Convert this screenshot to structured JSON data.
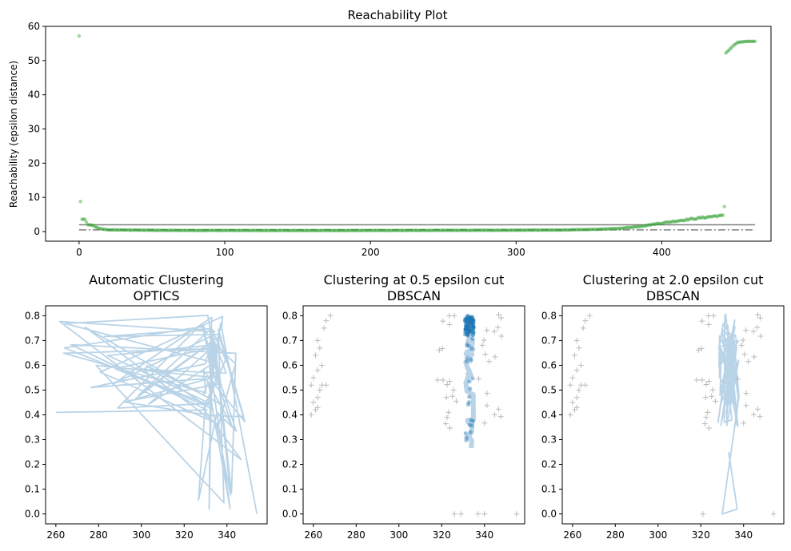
{
  "chart_data": [
    {
      "id": "reachability",
      "type": "scatter",
      "title": "Reachability Plot",
      "subtitle": "",
      "xlabel": "",
      "ylabel": "Reachability (epsilon distance)",
      "xlim": [
        -23,
        475
      ],
      "ylim": [
        -2.8,
        60
      ],
      "xticks": [
        0,
        100,
        200,
        300,
        400
      ],
      "yticks": [
        0,
        10,
        20,
        30,
        40,
        50,
        60
      ],
      "grid": false,
      "legend": "none",
      "point_color": "#2ca02c",
      "series": [
        {
          "role": "reachability-points",
          "anchors": [
            [
              0,
              57.2
            ],
            [
              1,
              8.8
            ],
            [
              2,
              3.6
            ],
            [
              4,
              3.6
            ],
            [
              6,
              2.0
            ],
            [
              9,
              1.9
            ],
            [
              12,
              1.2
            ],
            [
              15,
              0.8
            ],
            [
              20,
              0.5
            ],
            [
              60,
              0.35
            ],
            [
              150,
              0.3
            ],
            [
              250,
              0.35
            ],
            [
              300,
              0.4
            ],
            [
              330,
              0.45
            ],
            [
              350,
              0.6
            ],
            [
              370,
              0.9
            ],
            [
              385,
              1.5
            ],
            [
              395,
              2.2
            ],
            [
              405,
              2.8
            ],
            [
              415,
              3.4
            ],
            [
              425,
              3.9
            ],
            [
              432,
              4.3
            ],
            [
              438,
              4.6
            ],
            [
              442,
              4.8
            ],
            [
              443,
              7.3
            ],
            [
              444,
              52.2
            ],
            [
              446,
              53.0
            ],
            [
              449,
              54.3
            ],
            [
              452,
              55.3
            ],
            [
              458,
              55.6
            ],
            [
              464,
              55.6
            ]
          ],
          "count": 465
        }
      ],
      "hlines": [
        {
          "y": 2.0,
          "style": "solid",
          "color": "#000000",
          "alpha": 0.5
        },
        {
          "y": 0.5,
          "style": "dashdot",
          "color": "#000000",
          "alpha": 0.5
        }
      ]
    },
    {
      "id": "optics",
      "type": "line",
      "title": "Automatic Clustering",
      "subtitle": "OPTICS",
      "xlim": [
        255.2,
        358.8
      ],
      "ylim": [
        -0.04,
        0.84
      ],
      "xticks": [
        260,
        280,
        300,
        320,
        340
      ],
      "yticks": [
        0.0,
        0.1,
        0.2,
        0.3,
        0.4,
        0.5,
        0.6,
        0.7,
        0.8
      ],
      "line_color": "#b9d3e7"
    },
    {
      "id": "dbscan05",
      "type": "scatter",
      "title": "Clustering at 0.5 epsilon cut",
      "subtitle": "DBSCAN",
      "xlim": [
        255.2,
        358.8
      ],
      "ylim": [
        -0.04,
        0.84
      ],
      "xticks": [
        260,
        280,
        300,
        320,
        340
      ],
      "yticks": [
        0.0,
        0.1,
        0.2,
        0.3,
        0.4,
        0.5,
        0.6,
        0.7,
        0.8
      ],
      "cluster_color": "#1f77b4",
      "noise_color": "#bbbbbb",
      "band_color": "#b9d3e7"
    },
    {
      "id": "dbscan20",
      "type": "scatter",
      "title": "Clustering at 2.0 epsilon cut",
      "subtitle": "DBSCAN",
      "xlim": [
        255.2,
        358.8
      ],
      "ylim": [
        -0.04,
        0.84
      ],
      "xticks": [
        260,
        280,
        300,
        320,
        340
      ],
      "yticks": [
        0.0,
        0.1,
        0.2,
        0.3,
        0.4,
        0.5,
        0.6,
        0.7,
        0.8
      ],
      "band_color": "#b9d3e7",
      "noise_color": "#bbbbbb"
    }
  ]
}
